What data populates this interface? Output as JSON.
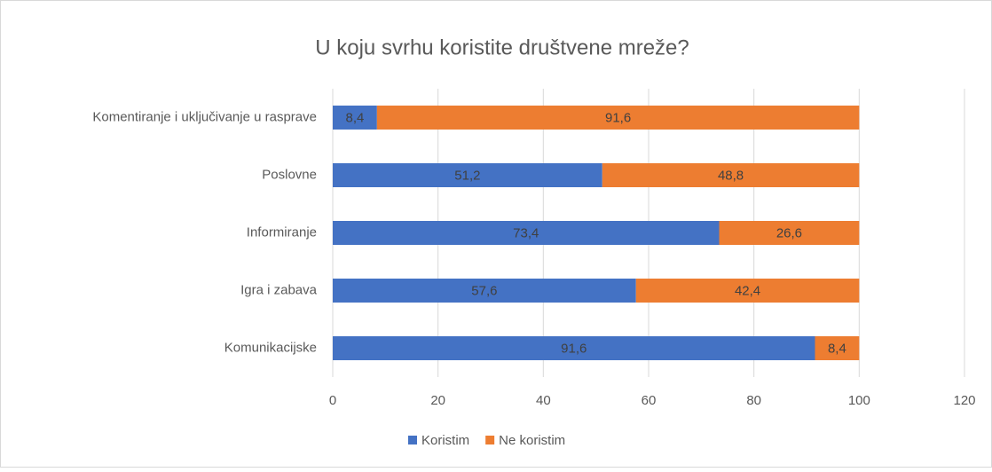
{
  "chart_data": {
    "type": "bar",
    "orientation": "horizontal",
    "stacked": true,
    "title": "U koju svrhu koristite društvene mreže?",
    "categories": [
      "Komentiranje i uključivanje u rasprave",
      "Poslovne",
      "Informiranje",
      "Igra i zabava",
      "Komunikacijske"
    ],
    "series": [
      {
        "name": "Koristim",
        "color": "#4472c4",
        "values": [
          8.4,
          51.2,
          73.4,
          57.6,
          91.6
        ],
        "value_labels": [
          "8,4",
          "51,2",
          "73,4",
          "57,6",
          "91,6"
        ]
      },
      {
        "name": "Ne koristim",
        "color": "#ed7d31",
        "values": [
          91.6,
          48.8,
          26.6,
          42.4,
          8.4
        ],
        "value_labels": [
          "91,6",
          "48,8",
          "26,6",
          "42,4",
          "8,4"
        ]
      }
    ],
    "xlim": [
      0,
      120
    ],
    "xticks": [
      0,
      20,
      40,
      60,
      80,
      100,
      120
    ],
    "grid": true,
    "legend": "bottom"
  }
}
